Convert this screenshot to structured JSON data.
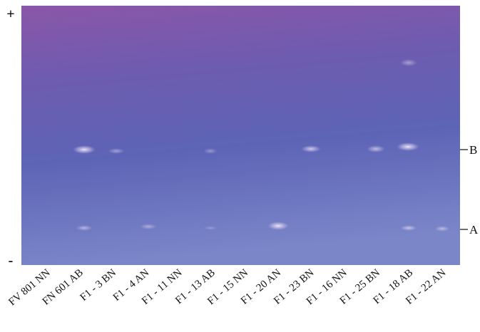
{
  "polarity": {
    "top": "+",
    "bottom": "-"
  },
  "markers": [
    "B",
    "A"
  ],
  "lanes": [
    "FV 801 NN",
    "FN 601 AB",
    "F1 - 3 BN",
    "F1 - 4 AN",
    "F1 - 11 NN",
    "F1 - 13 AB",
    "F1 - 15 NN",
    "F1 - 20 AN",
    "F1 - 23 BN",
    "F1 - 16 NN",
    "F1 - 25 BN",
    "F1 - 18 AB",
    "F1 - 22 AN"
  ]
}
